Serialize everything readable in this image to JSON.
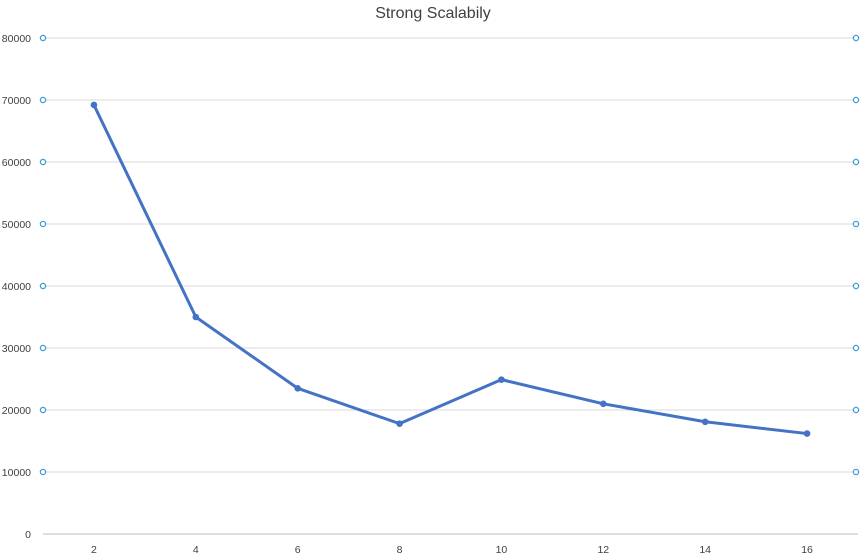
{
  "chart_data": {
    "type": "line",
    "title": "Strong Scalabily",
    "xlabel": "",
    "ylabel": "",
    "categories": [
      "2",
      "4",
      "6",
      "8",
      "10",
      "12",
      "14",
      "16"
    ],
    "series": [
      {
        "values": [
          69200,
          35000,
          23500,
          17800,
          24900,
          21000,
          18100,
          16200
        ]
      }
    ],
    "ylim": [
      0,
      80000
    ],
    "yticks": [
      "0",
      "10000",
      "20000",
      "30000",
      "40000",
      "50000",
      "60000",
      "70000",
      "80000"
    ],
    "grid": true,
    "legend": "none",
    "colors": {
      "series": "#4472c4",
      "grid": "#d9d9d9",
      "selection_handles": "#3f9ad8"
    }
  }
}
